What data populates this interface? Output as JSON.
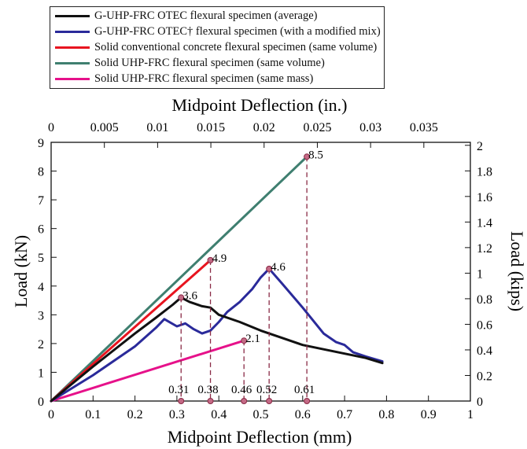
{
  "chart_data": {
    "type": "line",
    "xlabel": "Midpoint Deflection (mm)",
    "ylabel": "Load (kN)",
    "x2label": "Midpoint Deflection (in.)",
    "y2label": "Load (kips)",
    "xlim": [
      0,
      1
    ],
    "ylim": [
      0,
      9
    ],
    "x2lim": [
      0,
      0.03937
    ],
    "y2lim": [
      0,
      2.0233
    ],
    "x_ticks": [
      "0",
      "0.1",
      "0.2",
      "0.3",
      "0.4",
      "0.5",
      "0.6",
      "0.7",
      "0.8",
      "0.9",
      "1"
    ],
    "y_ticks": [
      "0",
      "1",
      "2",
      "3",
      "4",
      "5",
      "6",
      "7",
      "8",
      "9"
    ],
    "x2_ticks": [
      "0",
      "0.005",
      "0.01",
      "0.015",
      "0.02",
      "0.025",
      "0.03",
      "0.035"
    ],
    "y2_ticks": [
      "0",
      "0.2",
      "0.4",
      "0.6",
      "0.8",
      "1",
      "1.2",
      "1.4",
      "1.6",
      "1.8",
      "2"
    ],
    "legend_position": "top-left (above plot)",
    "series": [
      {
        "name": "G-UHP-FRC OTEC flexural specimen (average)",
        "color": "#111111",
        "x": [
          0,
          0.1,
          0.2,
          0.25,
          0.29,
          0.31,
          0.33,
          0.36,
          0.38,
          0.4,
          0.45,
          0.5,
          0.55,
          0.6,
          0.65,
          0.7,
          0.75,
          0.79
        ],
        "y": [
          0,
          1.2,
          2.35,
          2.9,
          3.35,
          3.6,
          3.45,
          3.3,
          3.25,
          3.0,
          2.75,
          2.45,
          2.2,
          1.95,
          1.8,
          1.65,
          1.5,
          1.32
        ]
      },
      {
        "name": "G-UHP-FRC OTEC† flexural specimen (with a modified mix)",
        "color": "#2a2a9a",
        "x": [
          0,
          0.1,
          0.2,
          0.25,
          0.27,
          0.3,
          0.32,
          0.34,
          0.36,
          0.38,
          0.4,
          0.42,
          0.45,
          0.48,
          0.5,
          0.52,
          0.55,
          0.6,
          0.65,
          0.68,
          0.7,
          0.72,
          0.75,
          0.79
        ],
        "y": [
          0,
          0.9,
          1.9,
          2.55,
          2.85,
          2.6,
          2.7,
          2.5,
          2.35,
          2.45,
          2.75,
          3.1,
          3.45,
          3.9,
          4.3,
          4.6,
          4.1,
          3.25,
          2.35,
          2.05,
          1.95,
          1.7,
          1.55,
          1.38
        ]
      },
      {
        "name": "Solid conventional concrete flexural specimen (same volume)",
        "color": "#e8141f",
        "x": [
          0,
          0.38
        ],
        "y": [
          0,
          4.9
        ]
      },
      {
        "name": "Solid UHP-FRC flexural specimen (same volume)",
        "color": "#3f7f70",
        "x": [
          0,
          0.61
        ],
        "y": [
          0,
          8.5
        ]
      },
      {
        "name": "Solid UHP-FRC flexural specimen (same mass)",
        "color": "#e6118a",
        "x": [
          0,
          0.46
        ],
        "y": [
          0,
          2.1
        ]
      }
    ],
    "annotations": [
      {
        "label": "3.6",
        "x": 0.31,
        "y": 3.6,
        "x_label": "0.31"
      },
      {
        "label": "4.9",
        "x": 0.38,
        "y": 4.9,
        "x_label": "0.38"
      },
      {
        "label": "2.1",
        "x": 0.46,
        "y": 2.1,
        "x_label": "0.46"
      },
      {
        "label": "4.6",
        "x": 0.52,
        "y": 4.6,
        "x_label": "0.52"
      },
      {
        "label": "8.5",
        "x": 0.61,
        "y": 8.5,
        "x_label": "0.61"
      }
    ],
    "annotation_color": "#8a2b46",
    "grid": false
  }
}
